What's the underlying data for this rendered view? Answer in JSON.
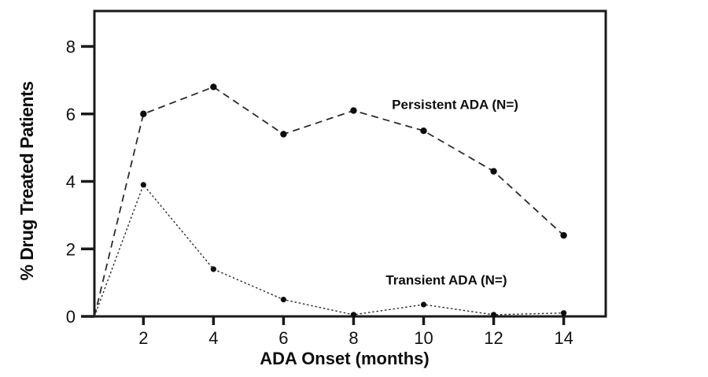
{
  "chart_data": {
    "type": "line",
    "title": "",
    "xlabel": "ADA Onset (months)",
    "ylabel": "% Drug Treated Patients",
    "x": [
      2,
      4,
      6,
      8,
      10,
      12,
      14
    ],
    "xticks": [
      "2",
      "4",
      "6",
      "8",
      "10",
      "12",
      "14"
    ],
    "yticks": [
      "0",
      "2",
      "4",
      "6",
      "8"
    ],
    "xlim": [
      0.6,
      15.2
    ],
    "ylim": [
      0,
      9.05
    ],
    "grid": false,
    "legend_position": "inline-annotations",
    "origin_start": {
      "x": 0.6,
      "y": 0
    },
    "series": [
      {
        "name": "Persistent ADA (N=)",
        "style": "dashed",
        "marker": "filled-circle",
        "values": [
          6.0,
          6.8,
          5.4,
          6.1,
          5.5,
          4.3,
          2.4
        ],
        "label_anchor": {
          "x": 10.9,
          "y": 6.15
        }
      },
      {
        "name": "Transient ADA (N=)",
        "style": "dotted",
        "marker": "filled-circle",
        "values": [
          3.9,
          1.4,
          0.5,
          0.05,
          0.35,
          0.05,
          0.1
        ],
        "label_anchor": {
          "x": 10.65,
          "y": 0.95
        }
      }
    ],
    "colors": {
      "axis": "#1a1a1a",
      "line": "#2b2b2b",
      "marker": "#0d0d0d",
      "text": "#111111",
      "background": "#ffffff"
    }
  }
}
